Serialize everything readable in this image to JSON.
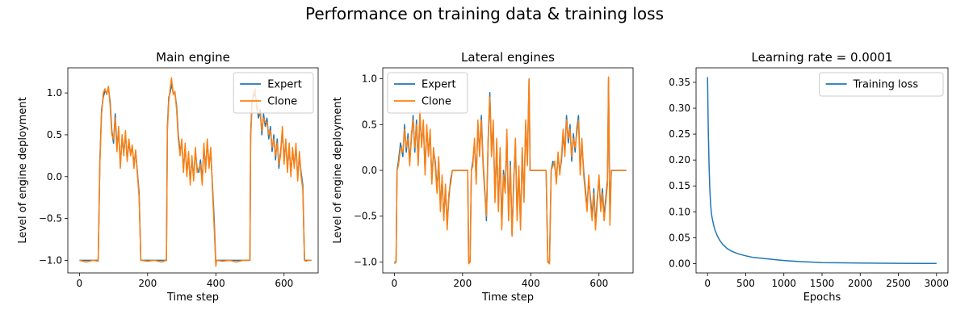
{
  "figure": {
    "suptitle": "Performance on training data & training loss"
  },
  "colors": {
    "expert": "#1f77b4",
    "clone": "#ff7f0e",
    "loss": "#1f77b4"
  },
  "chart_data": [
    {
      "type": "line",
      "title": "Main engine",
      "xlabel": "Time step",
      "ylabel": "Level of engine deployment",
      "xlim": [
        -34,
        700
      ],
      "ylim": [
        -1.15,
        1.3
      ],
      "xticks": [
        0,
        200,
        400,
        600
      ],
      "yticks": [
        -1.0,
        -0.5,
        0.0,
        0.5,
        1.0
      ],
      "ytick_labels": [
        "−1.0",
        "−0.5",
        "0.0",
        "0.5",
        "1.0"
      ],
      "legend": {
        "position": "upper-right"
      },
      "series": [
        {
          "name": "Expert",
          "x": [
            0,
            20,
            40,
            55,
            60,
            65,
            70,
            75,
            80,
            85,
            90,
            95,
            100,
            105,
            110,
            115,
            120,
            125,
            130,
            135,
            140,
            145,
            150,
            155,
            160,
            165,
            170,
            175,
            180,
            200,
            220,
            240,
            255,
            258,
            262,
            266,
            270,
            275,
            280,
            285,
            290,
            295,
            300,
            305,
            310,
            315,
            320,
            325,
            330,
            335,
            340,
            345,
            350,
            355,
            360,
            365,
            370,
            375,
            380,
            385,
            390,
            395,
            400,
            402,
            420,
            440,
            460,
            480,
            500,
            502,
            506,
            510,
            515,
            520,
            525,
            530,
            535,
            540,
            545,
            550,
            555,
            560,
            565,
            570,
            575,
            580,
            585,
            590,
            595,
            600,
            605,
            610,
            615,
            620,
            625,
            630,
            635,
            640,
            645,
            650,
            655,
            660,
            665,
            670,
            680
          ],
          "y": [
            -1.0,
            -1.0,
            -1.0,
            -1.0,
            0.2,
            0.8,
            0.95,
            1.02,
            1.0,
            1.05,
            0.9,
            0.55,
            0.4,
            0.75,
            0.35,
            0.55,
            0.15,
            0.45,
            0.3,
            0.5,
            0.2,
            0.4,
            0.28,
            0.35,
            0.15,
            0.3,
            0.05,
            -0.2,
            -1.0,
            -1.0,
            -1.0,
            -1.0,
            -1.0,
            0.6,
            0.95,
            1.0,
            1.1,
            1.0,
            1.0,
            0.85,
            0.5,
            0.3,
            0.4,
            0.1,
            0.35,
            0.05,
            0.25,
            -0.05,
            0.2,
            0.0,
            0.3,
            0.1,
            0.05,
            0.2,
            -0.05,
            0.35,
            0.1,
            0.4,
            0.15,
            0.3,
            -0.1,
            -0.5,
            -1.05,
            -1.0,
            -1.0,
            -1.0,
            -1.0,
            -1.0,
            -1.0,
            0.5,
            0.9,
            0.95,
            1.0,
            0.85,
            0.7,
            0.8,
            0.5,
            0.75,
            0.6,
            0.7,
            0.45,
            0.6,
            0.3,
            0.5,
            0.2,
            0.45,
            0.1,
            0.3,
            0.55,
            0.2,
            0.4,
            0.1,
            0.35,
            0.05,
            0.3,
            0.15,
            0.35,
            0.0,
            0.25,
            0.05,
            -0.1,
            -1.0,
            -1.0,
            -1.0,
            -1.0
          ],
          "color_key": "expert"
        },
        {
          "name": "Clone",
          "x": [
            0,
            20,
            40,
            55,
            60,
            65,
            70,
            75,
            80,
            85,
            90,
            95,
            100,
            105,
            110,
            115,
            120,
            125,
            130,
            135,
            140,
            145,
            150,
            155,
            160,
            165,
            170,
            175,
            180,
            200,
            220,
            240,
            255,
            258,
            262,
            266,
            270,
            275,
            280,
            285,
            290,
            295,
            300,
            305,
            310,
            315,
            320,
            325,
            330,
            335,
            340,
            345,
            350,
            355,
            360,
            365,
            370,
            375,
            380,
            385,
            390,
            395,
            400,
            402,
            420,
            440,
            460,
            480,
            500,
            502,
            506,
            510,
            515,
            520,
            525,
            530,
            535,
            540,
            545,
            550,
            555,
            560,
            565,
            570,
            575,
            580,
            585,
            590,
            595,
            600,
            605,
            610,
            615,
            620,
            625,
            630,
            635,
            640,
            645,
            650,
            655,
            660,
            665,
            670,
            680
          ],
          "y": [
            -1.0,
            -1.02,
            -1.0,
            -1.01,
            0.15,
            0.75,
            1.0,
            1.05,
            0.98,
            1.08,
            0.85,
            0.5,
            0.45,
            0.7,
            0.3,
            0.6,
            0.1,
            0.5,
            0.25,
            0.55,
            0.18,
            0.45,
            0.25,
            0.38,
            0.1,
            0.32,
            0.02,
            -0.25,
            -1.0,
            -1.01,
            -1.0,
            -1.02,
            -1.0,
            0.55,
            0.9,
            1.05,
            1.18,
            0.98,
            1.02,
            0.8,
            0.45,
            0.25,
            0.45,
            0.05,
            0.4,
            0.0,
            0.3,
            -0.1,
            0.25,
            -0.05,
            0.35,
            0.05,
            0.1,
            0.15,
            -0.1,
            0.4,
            0.05,
            0.45,
            0.1,
            0.35,
            -0.15,
            -0.6,
            -1.07,
            -1.0,
            -1.01,
            -1.0,
            -1.02,
            -1.0,
            -1.0,
            0.45,
            0.85,
            1.0,
            1.05,
            0.8,
            0.75,
            0.75,
            0.55,
            0.7,
            0.65,
            0.65,
            0.5,
            0.55,
            0.35,
            0.45,
            0.25,
            0.4,
            0.15,
            0.25,
            0.6,
            0.15,
            0.45,
            0.05,
            0.4,
            0.0,
            0.35,
            0.1,
            0.4,
            -0.05,
            0.3,
            0.0,
            -0.15,
            -1.0,
            -1.01,
            -1.0,
            -1.0
          ],
          "color_key": "clone"
        }
      ]
    },
    {
      "type": "line",
      "title": "Lateral engines",
      "xlabel": "Time step",
      "ylabel": "Level of engine deployment",
      "xlim": [
        -34,
        700
      ],
      "ylim": [
        -1.12,
        1.12
      ],
      "xticks": [
        0,
        200,
        400,
        600
      ],
      "yticks": [
        -1.0,
        -0.5,
        0.0,
        0.5,
        1.0
      ],
      "ytick_labels": [
        "−1.0",
        "−0.5",
        "0.0",
        "0.5",
        "1.0"
      ],
      "legend": {
        "position": "upper-left"
      },
      "series": [
        {
          "name": "Expert",
          "x": [
            0,
            5,
            8,
            12,
            18,
            25,
            30,
            35,
            40,
            45,
            50,
            55,
            60,
            65,
            70,
            75,
            80,
            85,
            90,
            95,
            100,
            105,
            110,
            115,
            120,
            125,
            130,
            135,
            140,
            145,
            150,
            155,
            160,
            165,
            170,
            180,
            200,
            215,
            218,
            222,
            226,
            230,
            235,
            240,
            245,
            250,
            255,
            260,
            265,
            270,
            275,
            280,
            285,
            290,
            295,
            300,
            305,
            310,
            315,
            320,
            325,
            330,
            335,
            340,
            345,
            350,
            355,
            360,
            365,
            370,
            375,
            380,
            385,
            390,
            395,
            398,
            402,
            410,
            430,
            445,
            450,
            455,
            460,
            465,
            470,
            475,
            480,
            485,
            490,
            495,
            500,
            505,
            510,
            515,
            520,
            525,
            530,
            535,
            540,
            545,
            550,
            555,
            560,
            565,
            570,
            575,
            580,
            585,
            590,
            595,
            600,
            605,
            610,
            615,
            620,
            625,
            628,
            632,
            636,
            640,
            660,
            680
          ],
          "y": [
            -1.0,
            -1.0,
            0.0,
            0.1,
            0.3,
            0.15,
            0.5,
            0.2,
            0.4,
            0.1,
            0.35,
            0.6,
            0.2,
            0.55,
            0.1,
            0.6,
            0.3,
            0.5,
            0.0,
            0.45,
            0.2,
            0.4,
            -0.1,
            0.2,
            0.1,
            -0.2,
            0.1,
            -0.4,
            -0.1,
            -0.5,
            -0.2,
            -0.6,
            -0.3,
            -0.1,
            0.0,
            0.0,
            0.0,
            0.0,
            -1.0,
            -1.0,
            0.0,
            0.1,
            0.3,
            -0.1,
            0.5,
            0.2,
            0.6,
            0.1,
            -0.2,
            -0.55,
            0.3,
            0.85,
            0.2,
            0.5,
            -0.3,
            0.3,
            -0.4,
            0.2,
            -0.6,
            0.0,
            -0.2,
            0.4,
            -0.5,
            0.1,
            -0.7,
            -0.1,
            0.3,
            -0.5,
            0.0,
            -0.6,
            0.2,
            -0.3,
            0.5,
            0.1,
            1.0,
            0.0,
            0.0,
            0.0,
            0.0,
            0.0,
            -1.0,
            -1.0,
            0.0,
            0.1,
            0.05,
            -0.1,
            0.15,
            0.0,
            0.1,
            0.4,
            0.2,
            0.6,
            0.3,
            0.5,
            0.1,
            0.4,
            0.2,
            0.45,
            0.6,
            0.0,
            0.3,
            0.0,
            -0.2,
            -0.4,
            -0.1,
            -0.3,
            -0.5,
            -0.2,
            -0.6,
            -0.3,
            -0.1,
            -0.4,
            -0.2,
            -0.5,
            -0.3,
            -0.1,
            1.0,
            -0.55,
            0.0,
            0.0,
            0.0,
            0.0
          ],
          "color_key": "expert"
        },
        {
          "name": "Clone",
          "x": [
            0,
            5,
            8,
            12,
            18,
            25,
            30,
            35,
            40,
            45,
            50,
            55,
            60,
            65,
            70,
            75,
            80,
            85,
            90,
            95,
            100,
            105,
            110,
            115,
            120,
            125,
            130,
            135,
            140,
            145,
            150,
            155,
            160,
            165,
            170,
            180,
            200,
            215,
            218,
            222,
            226,
            230,
            235,
            240,
            245,
            250,
            255,
            260,
            265,
            270,
            275,
            280,
            285,
            290,
            295,
            300,
            305,
            310,
            315,
            320,
            325,
            330,
            335,
            340,
            345,
            350,
            355,
            360,
            365,
            370,
            375,
            380,
            385,
            390,
            395,
            398,
            402,
            410,
            430,
            445,
            450,
            455,
            460,
            465,
            470,
            475,
            480,
            485,
            490,
            495,
            500,
            505,
            510,
            515,
            520,
            525,
            530,
            535,
            540,
            545,
            550,
            555,
            560,
            565,
            570,
            575,
            580,
            585,
            590,
            595,
            600,
            605,
            610,
            615,
            620,
            625,
            628,
            632,
            636,
            640,
            660,
            680
          ],
          "y": [
            -1.02,
            -1.0,
            0.0,
            0.05,
            0.25,
            0.2,
            0.45,
            0.25,
            0.35,
            0.05,
            0.4,
            0.55,
            0.25,
            0.5,
            0.05,
            0.65,
            0.25,
            0.55,
            -0.05,
            0.5,
            0.15,
            0.45,
            -0.15,
            0.25,
            0.05,
            -0.25,
            0.15,
            -0.45,
            -0.05,
            -0.55,
            -0.15,
            -0.65,
            -0.25,
            -0.15,
            0.0,
            0.0,
            0.0,
            0.0,
            -1.02,
            -1.0,
            0.0,
            0.05,
            0.35,
            -0.15,
            0.55,
            0.15,
            0.55,
            0.05,
            -0.25,
            -0.5,
            0.35,
            0.8,
            0.15,
            0.55,
            -0.35,
            0.35,
            -0.45,
            0.25,
            -0.65,
            -0.05,
            -0.25,
            0.45,
            -0.55,
            0.05,
            -0.72,
            -0.15,
            0.35,
            -0.55,
            0.05,
            -0.65,
            0.25,
            -0.35,
            0.55,
            0.05,
            1.0,
            0.0,
            0.0,
            0.0,
            0.0,
            0.0,
            -1.0,
            -1.02,
            0.0,
            0.05,
            0.1,
            -0.15,
            0.2,
            -0.05,
            0.15,
            0.45,
            0.15,
            0.55,
            0.35,
            0.45,
            0.15,
            0.35,
            0.25,
            0.4,
            0.55,
            -0.05,
            0.35,
            -0.05,
            -0.25,
            -0.45,
            -0.05,
            -0.35,
            -0.55,
            -0.25,
            -0.65,
            -0.35,
            -0.05,
            -0.45,
            -0.25,
            -0.55,
            -0.35,
            -0.15,
            1.02,
            -0.6,
            0.0,
            0.0,
            0.0,
            0.0
          ],
          "color_key": "clone"
        }
      ]
    },
    {
      "type": "line",
      "title": "Learning rate = 0.0001",
      "xlabel": "Epochs",
      "ylabel": "",
      "xlim": [
        -150,
        3150
      ],
      "ylim": [
        -0.018,
        0.378
      ],
      "xticks": [
        0,
        500,
        1000,
        1500,
        2000,
        2500,
        3000
      ],
      "yticks": [
        0.0,
        0.05,
        0.1,
        0.15,
        0.2,
        0.25,
        0.3,
        0.35
      ],
      "ytick_labels": [
        "0.00",
        "0.05",
        "0.10",
        "0.15",
        "0.20",
        "0.25",
        "0.30",
        "0.35"
      ],
      "legend": {
        "position": "upper-right"
      },
      "series": [
        {
          "name": "Training loss",
          "x": [
            0,
            10,
            20,
            30,
            40,
            50,
            60,
            80,
            100,
            130,
            160,
            200,
            250,
            300,
            400,
            500,
            600,
            800,
            1000,
            1200,
            1500,
            1800,
            2000,
            2500,
            3000
          ],
          "y": [
            0.36,
            0.26,
            0.19,
            0.145,
            0.115,
            0.098,
            0.088,
            0.075,
            0.064,
            0.053,
            0.045,
            0.037,
            0.03,
            0.025,
            0.019,
            0.015,
            0.012,
            0.009,
            0.006,
            0.004,
            0.002,
            0.0015,
            0.001,
            0.0005,
            0.0003
          ],
          "color_key": "loss"
        }
      ]
    }
  ]
}
